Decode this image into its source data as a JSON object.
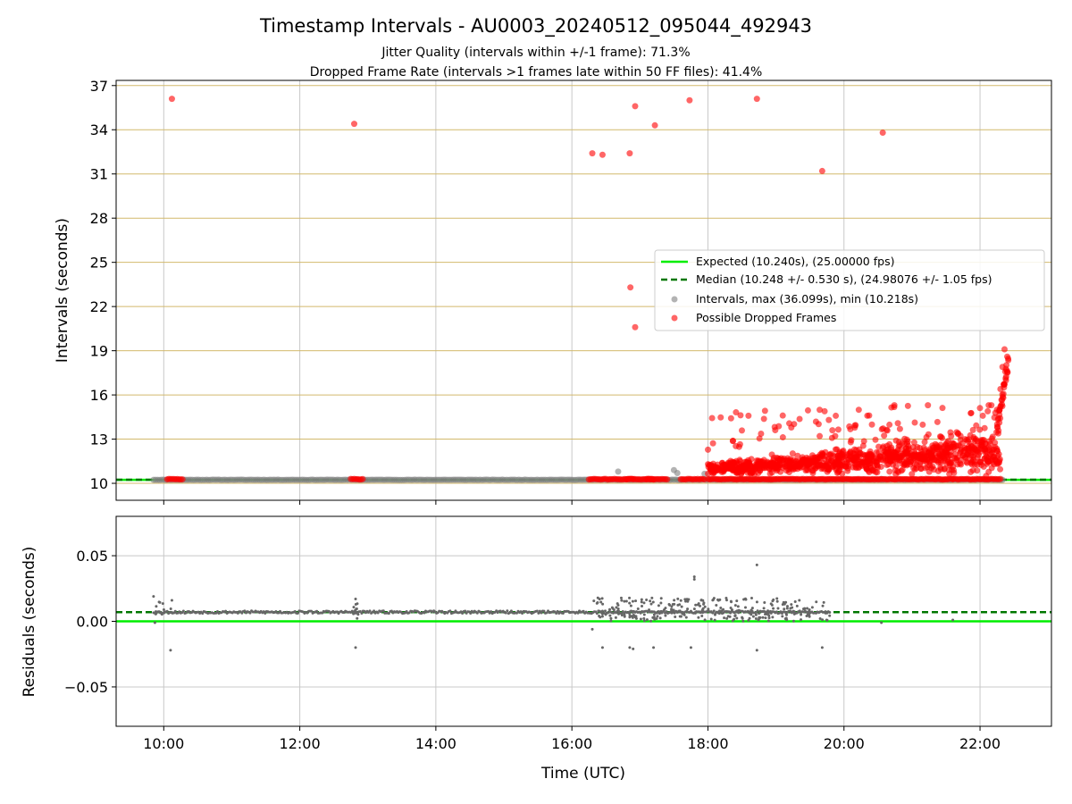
{
  "title": "Timestamp Intervals - AU0003_20240512_095044_492943",
  "subtitle_1": "Jitter Quality (intervals within +/-1 frame): 71.3%",
  "subtitle_2": "Dropped Frame Rate (intervals >1 frames late within 50 FF files): 41.4%",
  "colors": {
    "expected": "#00ee00",
    "median": "#007700",
    "intervals": "#808080",
    "dropped": "#ff0000",
    "grid_h": "#d2b96c",
    "grid_v": "#c8c8c8",
    "residual": "#666666"
  },
  "chart_data": [
    {
      "type": "scatter",
      "ylabel": "Intervals (seconds)",
      "xlabel": "",
      "x_unit": "hours UTC",
      "xlim": [
        9.3,
        23.05
      ],
      "ylim": [
        8.85,
        37.35
      ],
      "yticks": [
        10,
        13,
        16,
        19,
        22,
        25,
        28,
        31,
        34,
        37
      ],
      "xticks": [
        10,
        12,
        14,
        16,
        18,
        20,
        22
      ],
      "grid": true,
      "legend_position": "right",
      "series": [
        {
          "name": "Expected (10.240s), (25.00000 fps)",
          "kind": "hline",
          "y": 10.24,
          "style": "solid"
        },
        {
          "name": "Median (10.248 +/- 0.530 s), (24.98076 +/- 1.05 fps)",
          "kind": "hline",
          "y": 10.248,
          "style": "dashed"
        },
        {
          "name": "Intervals, max (36.099s), min (10.218s)",
          "kind": "scatter",
          "x_range": [
            9.85,
            22.35
          ],
          "baseline": 10.24,
          "outliers": [
            [
              16.68,
              10.8
            ],
            [
              17.5,
              10.9
            ],
            [
              17.55,
              10.7
            ],
            [
              17.95,
              10.65
            ],
            [
              20.55,
              10.3
            ]
          ]
        },
        {
          "name": "Possible Dropped Frames",
          "kind": "scatter",
          "points": [
            [
              10.12,
              36.1
            ],
            [
              12.8,
              34.4
            ],
            [
              16.3,
              32.4
            ],
            [
              16.45,
              32.3
            ],
            [
              16.85,
              32.4
            ],
            [
              16.93,
              35.6
            ],
            [
              17.22,
              34.3
            ],
            [
              17.73,
              36.0
            ],
            [
              18.72,
              36.1
            ],
            [
              19.68,
              31.2
            ],
            [
              20.57,
              33.8
            ],
            [
              16.86,
              23.3
            ],
            [
              16.93,
              20.6
            ],
            [
              19.1,
              14.6
            ],
            [
              21.6,
              10.3
            ]
          ],
          "baseline_clusters": [
            [
              10.05,
              10.3
            ],
            [
              12.75,
              12.95
            ],
            [
              16.25,
              16.9
            ],
            [
              16.8,
              17.2
            ],
            [
              17.1,
              17.4
            ],
            [
              17.6,
              17.95
            ],
            [
              18.0,
              22.3
            ]
          ],
          "cloud": {
            "x_range": [
              18.0,
              22.3
            ],
            "y_range": [
              10.8,
              15.3
            ]
          },
          "tail": [
            [
              22.25,
              15.0
            ],
            [
              22.3,
              16.4
            ],
            [
              22.33,
              17.9
            ],
            [
              22.36,
              19.1
            ],
            [
              22.4,
              18.6
            ]
          ]
        }
      ]
    },
    {
      "type": "scatter",
      "ylabel": "Residuals (seconds)",
      "xlabel": "Time (UTC)",
      "x_unit": "hours UTC",
      "xlim": [
        9.3,
        23.05
      ],
      "ylim": [
        -0.08,
        0.08
      ],
      "yticks": [
        0.05,
        0.0,
        -0.05
      ],
      "ytick_labels": [
        "0.05",
        "0.00",
        "−0.05"
      ],
      "xticks": [
        10,
        12,
        14,
        16,
        18,
        20,
        22
      ],
      "xtick_labels": [
        "10:00",
        "12:00",
        "14:00",
        "16:00",
        "18:00",
        "20:00",
        "22:00"
      ],
      "grid": true,
      "series": [
        {
          "kind": "hline",
          "y": 0.0,
          "style": "solid"
        },
        {
          "kind": "hline",
          "y": 0.007,
          "style": "dashed"
        },
        {
          "kind": "scatter",
          "baseline": 0.007,
          "x_range": [
            9.85,
            22.3
          ],
          "outliers": [
            [
              9.85,
              0.019
            ],
            [
              9.87,
              -0.001
            ],
            [
              10.1,
              -0.022
            ],
            [
              10.12,
              0.016
            ],
            [
              12.82,
              0.017
            ],
            [
              12.82,
              -0.02
            ],
            [
              16.3,
              -0.006
            ],
            [
              16.45,
              -0.02
            ],
            [
              16.85,
              -0.02
            ],
            [
              16.9,
              -0.021
            ],
            [
              17.2,
              -0.02
            ],
            [
              17.75,
              -0.02
            ],
            [
              17.8,
              0.034
            ],
            [
              17.8,
              0.032
            ],
            [
              18.72,
              0.043
            ],
            [
              18.72,
              -0.022
            ],
            [
              19.68,
              -0.02
            ],
            [
              21.6,
              0.001
            ],
            [
              20.55,
              -0.001
            ]
          ],
          "scatter_band": {
            "x_range": [
              16.3,
              19.8
            ],
            "y_range": [
              0.0,
              0.018
            ]
          }
        }
      ]
    }
  ]
}
